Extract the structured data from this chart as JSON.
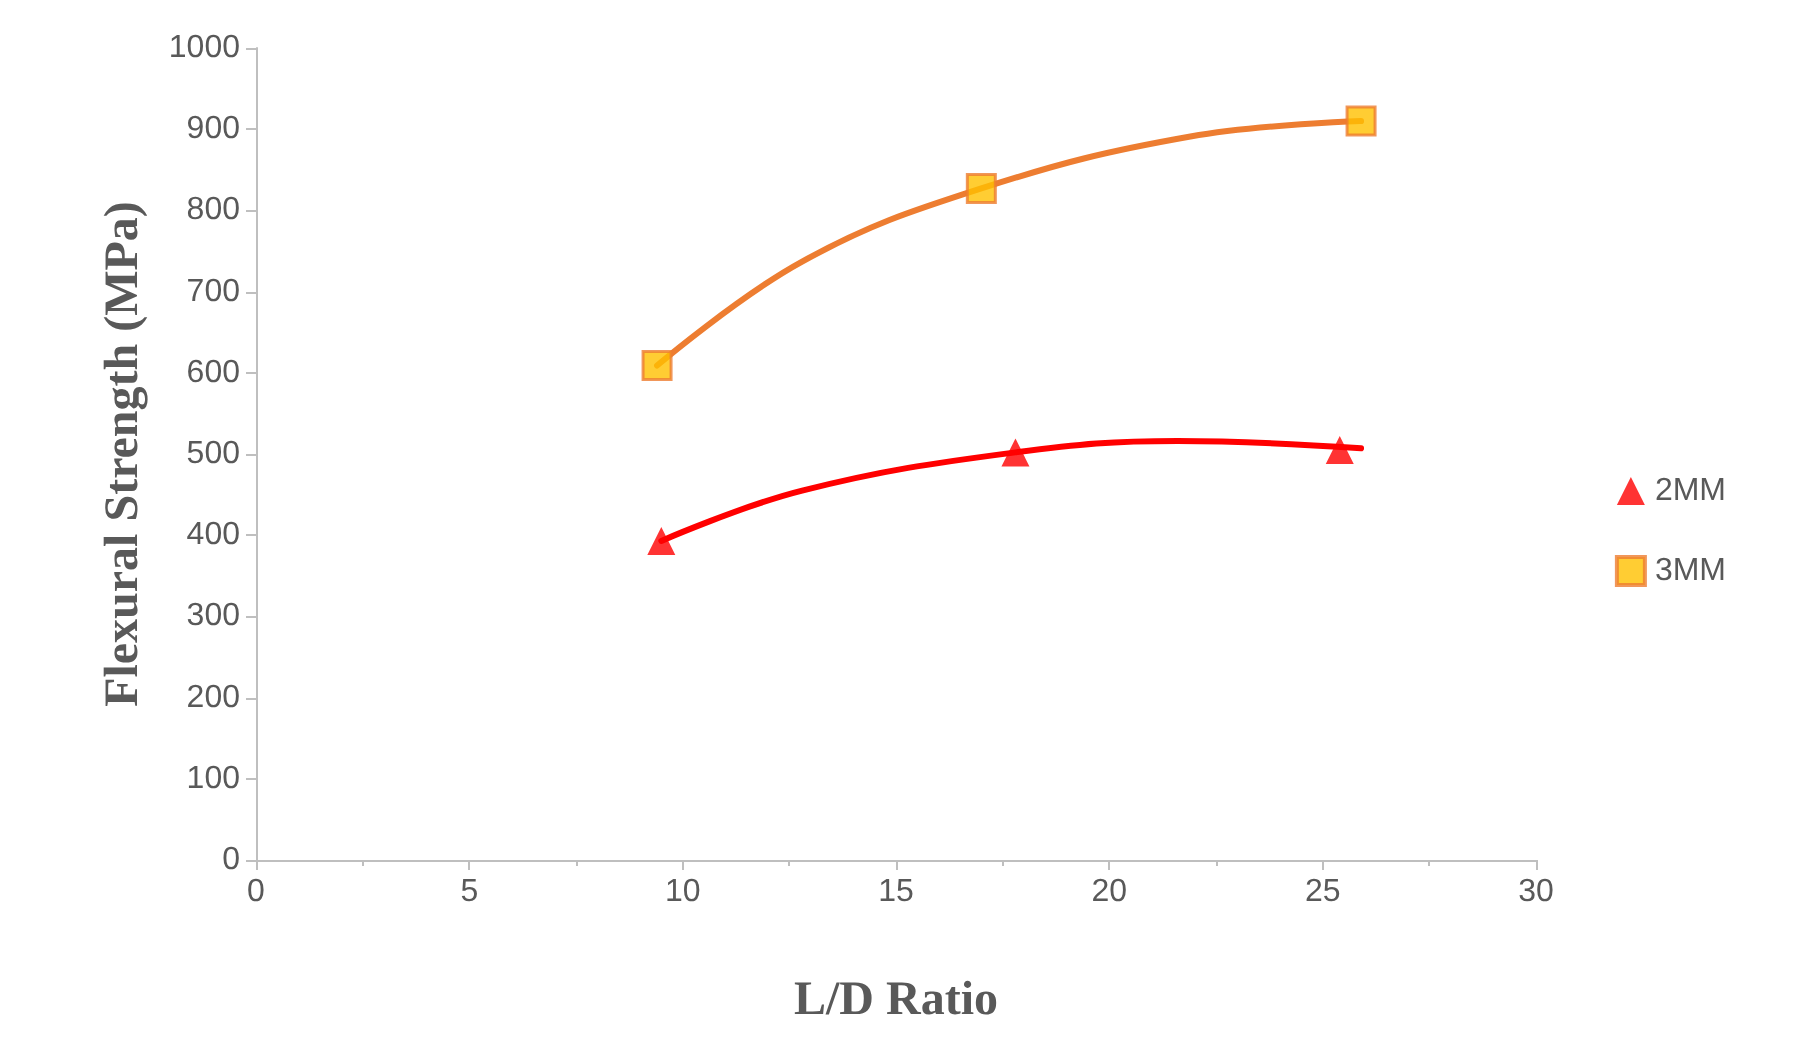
{
  "chart_data": {
    "type": "scatter",
    "xlabel": "L/D Ratio",
    "ylabel": "Flexural Strength (MPa)",
    "xlim": [
      0,
      30
    ],
    "xticks": [
      0,
      5,
      10,
      15,
      20,
      25,
      30
    ],
    "ylim": [
      0,
      1000
    ],
    "yticks": [
      0,
      100,
      200,
      300,
      400,
      500,
      600,
      700,
      800,
      900,
      1000
    ],
    "grid": false,
    "legend": "right",
    "series": [
      {
        "name": "2MM",
        "marker": "triangle",
        "color": "#ff0000",
        "x": [
          9.5,
          17.8,
          25.4
        ],
        "values": [
          393,
          502,
          505
        ]
      },
      {
        "name": "3MM",
        "marker": "square",
        "color": "#ffc000",
        "x": [
          9.4,
          17.0,
          25.9
        ],
        "values": [
          609,
          827,
          910
        ]
      },
      {
        "type": "line",
        "marker": "none",
        "color": "#ff0000",
        "x": [
          9.5,
          12.8,
          17.8,
          21.6,
          25.9
        ],
        "values": [
          393,
          455,
          502,
          516,
          507
        ]
      },
      {
        "type": "line",
        "marker": "none",
        "color": "#ed7d31",
        "x": [
          9.4,
          12.8,
          17.0,
          21.9,
          25.9
        ],
        "values": [
          609,
          737,
          827,
          891,
          910
        ]
      }
    ]
  }
}
